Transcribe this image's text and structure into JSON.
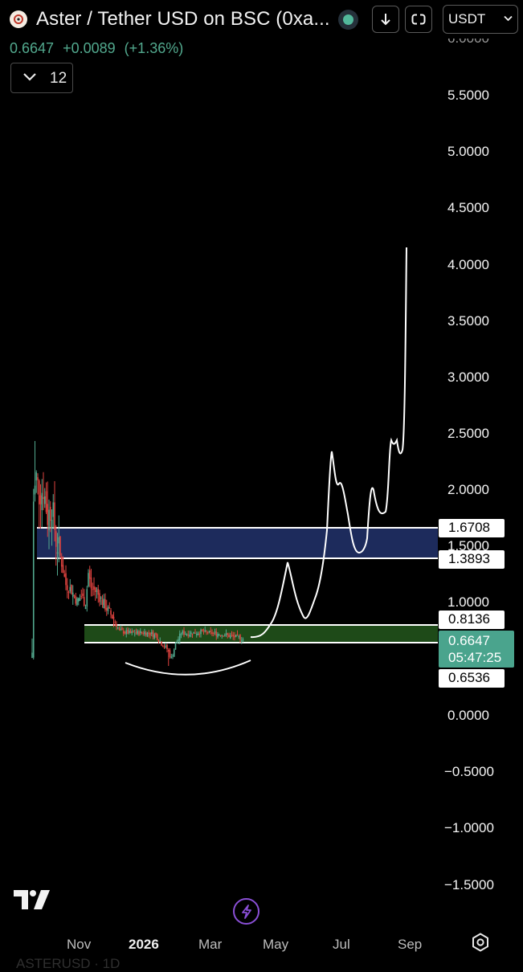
{
  "header": {
    "title": "Aster / Tether USD on BSC (0xa...",
    "currency": "USDT",
    "last_price": "0.6647",
    "change": "+0.0089",
    "change_pct": "(+1.36%)",
    "interval": "12",
    "icons": [
      "aster-logo-icon",
      "status-dot-icon",
      "download-icon",
      "compare-icon",
      "chevron-down-icon"
    ]
  },
  "colors": {
    "up": "#52a98e",
    "down": "#e0433f",
    "resistance_zone": "#1d2b5c",
    "support_zone": "#1e4a18",
    "price_badge": "#4aa48d",
    "projection_line": "#ffffff"
  },
  "chart_data": {
    "type": "candlestick",
    "title": "Aster / Tether USD on BSC (0xa...",
    "timeframe": "1D",
    "x_ticks": [
      "Nov",
      "2026",
      "Mar",
      "May",
      "Jul",
      "Sep"
    ],
    "y_ticks": [
      "5.5000",
      "5.0000",
      "4.5000",
      "4.0000",
      "3.5000",
      "3.0000",
      "2.5000",
      "2.0000",
      "1.5000",
      "1.0000",
      "0.0000",
      "−0.5000",
      "−1.0000",
      "−1.5000"
    ],
    "ylim": [
      -1.6,
      6.05
    ],
    "grid": false,
    "price_levels": [
      "1.6708",
      "1.3893",
      "0.8136",
      "0.6536"
    ],
    "current_price": "0.6647",
    "countdown": "05:47:25",
    "zones": [
      {
        "name": "resistance",
        "from": 1.3893,
        "to": 1.6708
      },
      {
        "name": "support",
        "from": 0.6536,
        "to": 0.8136
      }
    ],
    "candles_summary": {
      "start": "late Sep 2025",
      "peak_high": 2.42,
      "low": 0.43,
      "last_close": 0.6647,
      "end": "mid Apr 2026"
    },
    "projection_path": [
      [
        0.73,
        0.69
      ],
      [
        1.0,
        0.92
      ],
      [
        1.38,
        1.37
      ],
      [
        1.12,
        1.05
      ],
      [
        0.85,
        0.88
      ],
      [
        1.05,
        1.0
      ],
      [
        1.45,
        1.39
      ],
      [
        2.32,
        2.33
      ],
      [
        1.8,
        1.7
      ],
      [
        1.45,
        1.44
      ],
      [
        1.48,
        1.45
      ],
      [
        2.02,
        2.03
      ],
      [
        1.65,
        1.65
      ],
      [
        1.88,
        2.43
      ],
      [
        2.3,
        2.36
      ],
      [
        2.85,
        4.15
      ]
    ],
    "arc_bottom": 0.37
  },
  "bottom": {
    "brand": "TV",
    "symbol_cut": "ASTERUSD · 1D"
  }
}
